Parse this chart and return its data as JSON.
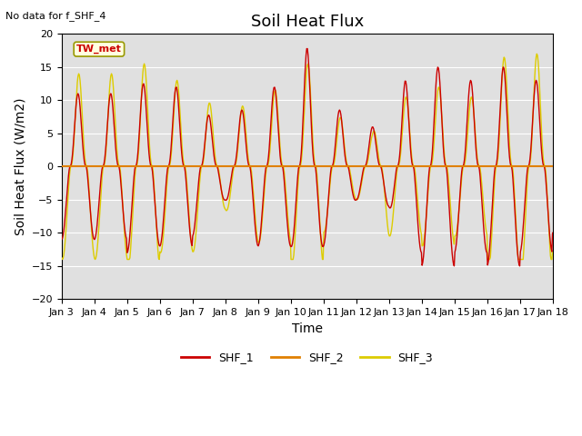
{
  "title": "Soil Heat Flux",
  "xlabel": "Time",
  "ylabel": "Soil Heat Flux (W/m2)",
  "ylim": [
    -20,
    20
  ],
  "yticks": [
    -20,
    -15,
    -10,
    -5,
    0,
    5,
    10,
    15,
    20
  ],
  "xtick_labels": [
    "Jan 3",
    "Jan 4",
    "Jan 5",
    "Jan 6",
    "Jan 7",
    "Jan 8",
    "Jan 9",
    "Jan 10",
    "Jan 11",
    "Jan 12",
    "Jan 13",
    "Jan 14",
    "Jan 15",
    "Jan 16",
    "Jan 17",
    "Jan 18"
  ],
  "no_data_text": "No data for f_SHF_4",
  "tw_met_label": "TW_met",
  "color_shf1": "#cc0000",
  "color_shf2": "#e08000",
  "color_shf3": "#ddcc00",
  "bg_color": "#e0e0e0",
  "grid_color": "#ffffff",
  "title_fontsize": 13,
  "axis_label_fontsize": 10,
  "tick_fontsize": 8
}
